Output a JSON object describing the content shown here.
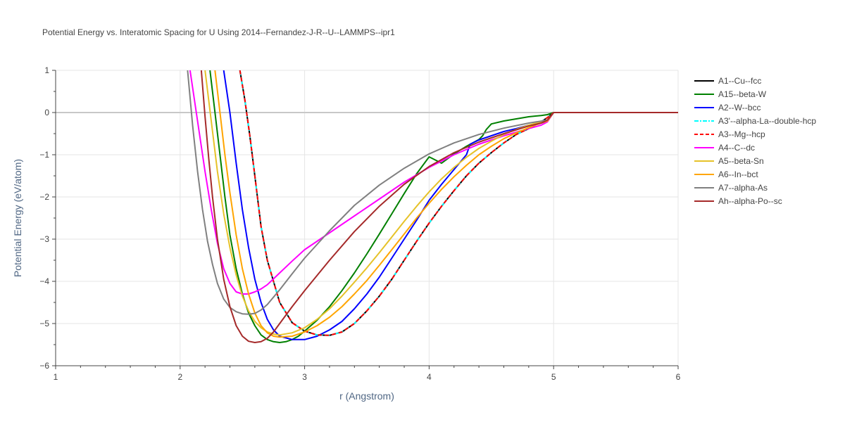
{
  "chart_data": {
    "type": "line",
    "title": "Potential Energy vs. Interatomic Spacing for U Using 2014--Fernandez-J-R--U--LAMMPS--ipr1",
    "xlabel": "r (Angstrom)",
    "ylabel": "Potential Energy (eV/atom)",
    "xlim": [
      1,
      6
    ],
    "ylim": [
      -6,
      1
    ],
    "x_ticks": [
      "1",
      "2",
      "3",
      "4",
      "5",
      "6"
    ],
    "y_ticks": [
      "1",
      "0",
      "−1",
      "−2",
      "−3",
      "−4",
      "−5",
      "−6"
    ],
    "grid": true,
    "legend_position": "right",
    "series": [
      {
        "name": "A1--Cu--fcc",
        "color": "#000000",
        "dash": "solid",
        "x": [
          2.48,
          2.52,
          2.56,
          2.6,
          2.65,
          2.7,
          2.8,
          2.9,
          3.0,
          3.1,
          3.2,
          3.3,
          3.4,
          3.5,
          3.6,
          3.7,
          3.8,
          3.9,
          4.0,
          4.1,
          4.2,
          4.3,
          4.4,
          4.5,
          4.6,
          4.7,
          4.8,
          4.9,
          4.95,
          5.0,
          6.0
        ],
        "y": [
          1.0,
          0.3,
          -0.55,
          -1.5,
          -2.7,
          -3.5,
          -4.5,
          -4.98,
          -5.18,
          -5.27,
          -5.28,
          -5.2,
          -5.0,
          -4.7,
          -4.35,
          -3.95,
          -3.5,
          -3.05,
          -2.62,
          -2.22,
          -1.85,
          -1.5,
          -1.2,
          -0.95,
          -0.72,
          -0.52,
          -0.38,
          -0.22,
          -0.12,
          0.0,
          0.0
        ]
      },
      {
        "name": "A15--beta-W",
        "color": "#008000",
        "dash": "solid",
        "x": [
          2.24,
          2.28,
          2.32,
          2.36,
          2.4,
          2.45,
          2.5,
          2.55,
          2.6,
          2.65,
          2.7,
          2.75,
          2.8,
          2.85,
          2.9,
          2.95,
          3.0,
          3.1,
          3.2,
          3.3,
          3.4,
          3.5,
          3.6,
          3.7,
          3.8,
          3.9,
          4.0,
          4.1,
          4.2,
          4.3,
          4.4,
          4.43,
          4.46,
          4.5,
          4.6,
          4.7,
          4.8,
          4.9,
          4.95,
          5.0,
          6.0
        ],
        "y": [
          1.0,
          0.0,
          -1.0,
          -2.0,
          -2.9,
          -3.7,
          -4.3,
          -4.75,
          -5.05,
          -5.27,
          -5.38,
          -5.43,
          -5.45,
          -5.43,
          -5.38,
          -5.3,
          -5.18,
          -4.92,
          -4.6,
          -4.22,
          -3.8,
          -3.35,
          -2.88,
          -2.4,
          -1.92,
          -1.45,
          -1.05,
          -1.2,
          -0.98,
          -0.8,
          -0.64,
          -0.55,
          -0.4,
          -0.27,
          -0.2,
          -0.15,
          -0.1,
          -0.07,
          -0.05,
          0.0,
          0.0
        ]
      },
      {
        "name": "A2--W--bcc",
        "color": "#0000ff",
        "dash": "solid",
        "x": [
          2.35,
          2.4,
          2.45,
          2.5,
          2.55,
          2.6,
          2.65,
          2.7,
          2.75,
          2.8,
          2.9,
          3.0,
          3.1,
          3.2,
          3.3,
          3.4,
          3.5,
          3.6,
          3.7,
          3.8,
          3.9,
          4.0,
          4.1,
          4.2,
          4.3,
          4.33,
          4.4,
          4.5,
          4.6,
          4.7,
          4.8,
          4.9,
          4.95,
          5.0,
          6.0
        ],
        "y": [
          1.0,
          0.0,
          -1.2,
          -2.3,
          -3.2,
          -3.95,
          -4.5,
          -4.9,
          -5.15,
          -5.3,
          -5.38,
          -5.38,
          -5.3,
          -5.15,
          -4.95,
          -4.65,
          -4.3,
          -3.9,
          -3.45,
          -3.0,
          -2.55,
          -2.08,
          -1.7,
          -1.35,
          -1.0,
          -0.75,
          -0.65,
          -0.55,
          -0.45,
          -0.38,
          -0.3,
          -0.25,
          -0.2,
          0.0,
          0.0
        ]
      },
      {
        "name": "A3'--alpha-La--double-hcp",
        "color": "#00ffff",
        "dash": "dashdot",
        "x": [
          2.48,
          2.52,
          2.56,
          2.6,
          2.65,
          2.7,
          2.8,
          2.9,
          3.0,
          3.1,
          3.2,
          3.3,
          3.4,
          3.5,
          3.6,
          3.7,
          3.8,
          3.9,
          4.0,
          4.1,
          4.2,
          4.3,
          4.4,
          4.5,
          4.6,
          4.7,
          4.8,
          4.9,
          4.95,
          5.0,
          6.0
        ],
        "y": [
          1.0,
          0.3,
          -0.55,
          -1.5,
          -2.7,
          -3.5,
          -4.5,
          -4.98,
          -5.18,
          -5.27,
          -5.28,
          -5.2,
          -5.0,
          -4.7,
          -4.35,
          -3.95,
          -3.5,
          -3.05,
          -2.62,
          -2.22,
          -1.85,
          -1.5,
          -1.2,
          -0.95,
          -0.72,
          -0.52,
          -0.38,
          -0.22,
          -0.12,
          0.0,
          0.0
        ]
      },
      {
        "name": "A3--Mg--hcp",
        "color": "#ff0000",
        "dash": "dash",
        "x": [
          2.48,
          2.52,
          2.56,
          2.6,
          2.65,
          2.7,
          2.8,
          2.9,
          3.0,
          3.1,
          3.2,
          3.3,
          3.4,
          3.5,
          3.6,
          3.7,
          3.8,
          3.9,
          4.0,
          4.1,
          4.2,
          4.3,
          4.4,
          4.5,
          4.6,
          4.7,
          4.8,
          4.9,
          4.95,
          5.0,
          6.0
        ],
        "y": [
          1.0,
          0.3,
          -0.55,
          -1.5,
          -2.7,
          -3.5,
          -4.5,
          -4.98,
          -5.18,
          -5.27,
          -5.28,
          -5.2,
          -5.0,
          -4.7,
          -4.35,
          -3.95,
          -3.5,
          -3.05,
          -2.62,
          -2.22,
          -1.85,
          -1.5,
          -1.2,
          -0.95,
          -0.72,
          -0.52,
          -0.38,
          -0.22,
          -0.12,
          0.0,
          0.0
        ]
      },
      {
        "name": "A4--C--dc",
        "color": "#ff00ff",
        "dash": "solid",
        "x": [
          2.08,
          2.12,
          2.16,
          2.2,
          2.25,
          2.3,
          2.35,
          2.4,
          2.45,
          2.5,
          2.55,
          2.6,
          2.65,
          2.7,
          2.8,
          2.9,
          3.0,
          3.2,
          3.4,
          3.6,
          3.8,
          4.0,
          4.2,
          4.4,
          4.6,
          4.8,
          4.9,
          4.95,
          5.0,
          6.0
        ],
        "y": [
          1.0,
          0.2,
          -0.6,
          -1.4,
          -2.3,
          -3.1,
          -3.7,
          -4.05,
          -4.25,
          -4.3,
          -4.3,
          -4.25,
          -4.18,
          -4.08,
          -3.8,
          -3.52,
          -3.25,
          -2.85,
          -2.45,
          -2.05,
          -1.65,
          -1.3,
          -1.0,
          -0.75,
          -0.55,
          -0.38,
          -0.3,
          -0.22,
          0.0,
          0.0
        ]
      },
      {
        "name": "A5--beta-Sn",
        "color": "#e6c229",
        "dash": "solid",
        "x": [
          2.2,
          2.25,
          2.3,
          2.35,
          2.4,
          2.45,
          2.5,
          2.55,
          2.6,
          2.65,
          2.7,
          2.75,
          2.8,
          2.9,
          3.0,
          3.1,
          3.2,
          3.3,
          3.4,
          3.5,
          3.6,
          3.7,
          3.8,
          3.9,
          4.0,
          4.1,
          4.2,
          4.3,
          4.4,
          4.5,
          4.6,
          4.7,
          4.8,
          4.9,
          4.95,
          5.0,
          6.0
        ],
        "y": [
          1.0,
          -0.2,
          -1.4,
          -2.4,
          -3.2,
          -3.85,
          -4.35,
          -4.7,
          -4.95,
          -5.1,
          -5.2,
          -5.25,
          -5.27,
          -5.22,
          -5.1,
          -4.9,
          -4.65,
          -4.35,
          -4.02,
          -3.68,
          -3.32,
          -2.95,
          -2.58,
          -2.22,
          -1.88,
          -1.57,
          -1.3,
          -1.06,
          -0.85,
          -0.68,
          -0.52,
          -0.4,
          -0.3,
          -0.22,
          -0.18,
          0.0,
          0.0
        ]
      },
      {
        "name": "A6--In--bct",
        "color": "#ffa500",
        "dash": "solid",
        "x": [
          2.28,
          2.32,
          2.36,
          2.4,
          2.45,
          2.5,
          2.55,
          2.6,
          2.65,
          2.7,
          2.75,
          2.8,
          2.9,
          3.0,
          3.1,
          3.2,
          3.3,
          3.4,
          3.5,
          3.6,
          3.7,
          3.8,
          3.9,
          4.0,
          4.1,
          4.2,
          4.3,
          4.4,
          4.5,
          4.6,
          4.7,
          4.8,
          4.85,
          4.9,
          4.95,
          5.0,
          6.0
        ],
        "y": [
          1.0,
          0.0,
          -1.0,
          -1.9,
          -2.9,
          -3.7,
          -4.3,
          -4.75,
          -5.05,
          -5.22,
          -5.3,
          -5.32,
          -5.3,
          -5.2,
          -5.05,
          -4.85,
          -4.6,
          -4.3,
          -3.98,
          -3.62,
          -3.25,
          -2.88,
          -2.5,
          -2.15,
          -1.82,
          -1.52,
          -1.25,
          -1.0,
          -0.8,
          -0.62,
          -0.48,
          -0.36,
          -0.3,
          -0.25,
          -0.2,
          0.0,
          0.0
        ]
      },
      {
        "name": "A7--alpha-As",
        "color": "#808080",
        "dash": "solid",
        "x": [
          2.06,
          2.1,
          2.14,
          2.18,
          2.22,
          2.26,
          2.3,
          2.35,
          2.4,
          2.45,
          2.5,
          2.55,
          2.6,
          2.65,
          2.7,
          2.8,
          2.9,
          3.0,
          3.2,
          3.4,
          3.6,
          3.8,
          4.0,
          4.2,
          4.4,
          4.6,
          4.8,
          4.95,
          5.0,
          6.0
        ],
        "y": [
          1.0,
          -0.3,
          -1.4,
          -2.3,
          -3.05,
          -3.6,
          -4.05,
          -4.42,
          -4.62,
          -4.72,
          -4.77,
          -4.78,
          -4.76,
          -4.68,
          -4.55,
          -4.2,
          -3.82,
          -3.45,
          -2.8,
          -2.2,
          -1.72,
          -1.32,
          -0.98,
          -0.72,
          -0.52,
          -0.37,
          -0.25,
          -0.18,
          0.0,
          0.0
        ]
      },
      {
        "name": "Ah--alpha-Po--sc",
        "color": "#a52a2a",
        "dash": "solid",
        "x": [
          2.17,
          2.2,
          2.23,
          2.26,
          2.3,
          2.35,
          2.4,
          2.45,
          2.5,
          2.55,
          2.6,
          2.65,
          2.7,
          2.75,
          2.8,
          2.9,
          3.0,
          3.2,
          3.4,
          3.6,
          3.8,
          4.0,
          4.2,
          4.4,
          4.6,
          4.8,
          4.9,
          4.95,
          5.0,
          6.0
        ],
        "y": [
          1.0,
          -0.1,
          -1.1,
          -2.0,
          -3.0,
          -3.95,
          -4.6,
          -5.05,
          -5.3,
          -5.42,
          -5.45,
          -5.43,
          -5.35,
          -5.2,
          -5.0,
          -4.6,
          -4.22,
          -3.5,
          -2.82,
          -2.22,
          -1.7,
          -1.28,
          -0.95,
          -0.7,
          -0.5,
          -0.32,
          -0.25,
          -0.18,
          0.0,
          0.0
        ]
      }
    ]
  }
}
